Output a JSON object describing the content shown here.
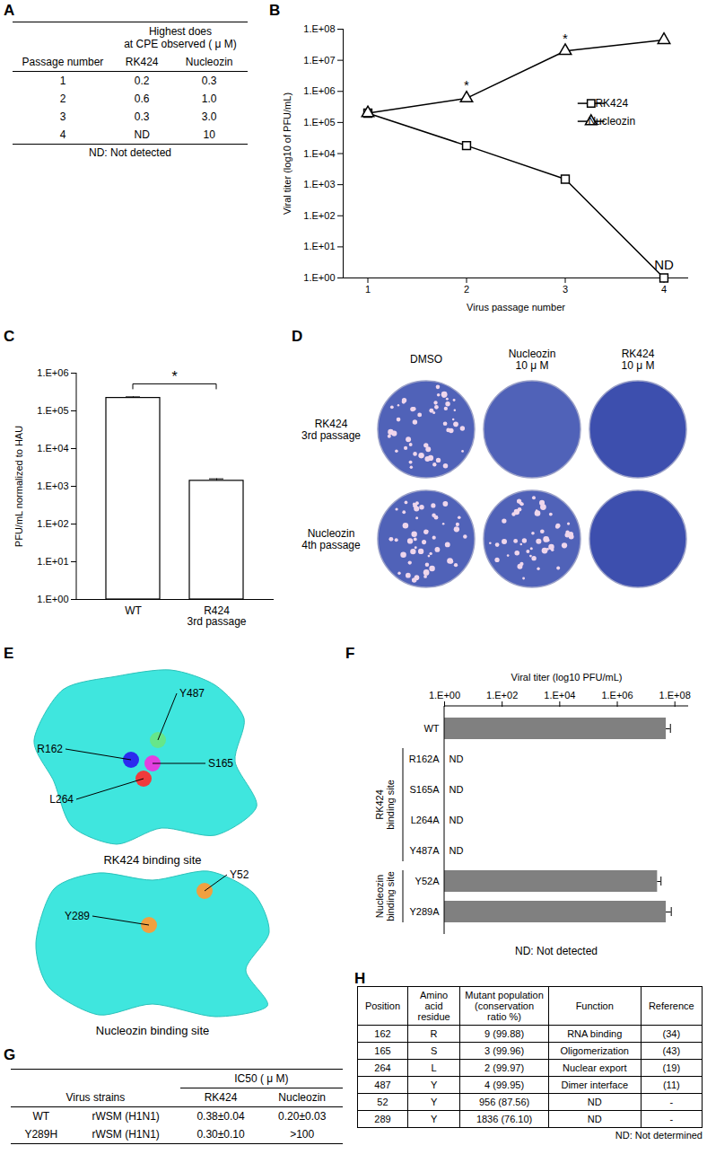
{
  "panel_labels": [
    "A",
    "B",
    "C",
    "D",
    "E",
    "F",
    "G",
    "H"
  ],
  "table_a": {
    "header": "Highest does\nat CPE observed ( μ M)",
    "columns": [
      "Passage number",
      "RK424",
      "Nucleozin"
    ],
    "rows": [
      [
        "1",
        "0.2",
        "0.3"
      ],
      [
        "2",
        "0.6",
        "1.0"
      ],
      [
        "3",
        "0.3",
        "3.0"
      ],
      [
        "4",
        "ND",
        "10"
      ]
    ],
    "footnote": "ND: Not detected"
  },
  "chart_data": [
    {
      "type": "line",
      "x": [
        1,
        2,
        3,
        4
      ],
      "xlim": [
        0.75,
        4.25
      ],
      "xticks": [
        1,
        2,
        3,
        4
      ],
      "x_label": "Virus passage number",
      "y_label": "Viral titer (log10 of PFU/mL)",
      "log": "y",
      "ylim": [
        1,
        100000000
      ],
      "yticks": [
        {
          "value": 1,
          "label": "1.E+00"
        },
        {
          "value": 10,
          "label": "1.E+01"
        },
        {
          "value": 100,
          "label": "1.E+02"
        },
        {
          "value": 1000,
          "label": "1.E+03"
        },
        {
          "value": 10000,
          "label": "1.E+04"
        },
        {
          "value": 100000,
          "label": "1.E+05"
        },
        {
          "value": 1000000,
          "label": "1.E+06"
        },
        {
          "value": 10000000,
          "label": "1.E+07"
        },
        {
          "value": 100000000,
          "label": "1.E+08"
        }
      ],
      "series": [
        {
          "name": "RK424",
          "color": "#000000",
          "marker": "square",
          "values": [
            200000,
            18000,
            1500,
            1
          ]
        },
        {
          "name": "Nucleozin",
          "color": "#000000",
          "marker": "triangle",
          "values": [
            200000,
            600000,
            20000000,
            45000000
          ]
        }
      ],
      "annotations": [
        {
          "x": 2,
          "y": 600000,
          "text": "*"
        },
        {
          "x": 3,
          "y": 20000000,
          "text": "*"
        },
        {
          "x": 4,
          "y": 1,
          "text": "ND"
        }
      ],
      "legend": "right"
    },
    {
      "type": "bar",
      "categories": [
        "WT",
        "R424\n3rd passage"
      ],
      "values": [
        220000,
        1400
      ],
      "errors": [
        15000,
        180
      ],
      "y_label": "PFU/mL normalized to HAU",
      "log": "y",
      "ylim": [
        1,
        1000000
      ],
      "yticks": [
        {
          "value": 1,
          "label": "1.E+00"
        },
        {
          "value": 10,
          "label": "1.E+01"
        },
        {
          "value": 100,
          "label": "1.E+02"
        },
        {
          "value": 1000,
          "label": "1.E+03"
        },
        {
          "value": 10000,
          "label": "1.E+04"
        },
        {
          "value": 100000,
          "label": "1.E+05"
        },
        {
          "value": 1000000,
          "label": "1.E+06"
        }
      ],
      "color": "#ffffff",
      "annotations": [
        {
          "text": "*",
          "x": [
            "WT",
            "R424\n3rd passage"
          ]
        }
      ]
    },
    {
      "type": "bar",
      "orientation": "horizontal",
      "categories": [
        "WT",
        "R162A",
        "S165A",
        "L264A",
        "Y487A",
        "Y52A",
        "Y289A"
      ],
      "values": [
        50000000,
        null,
        null,
        null,
        null,
        25000000,
        50000000
      ],
      "errors": [
        20000000,
        null,
        null,
        null,
        null,
        8000000,
        25000000
      ],
      "value_labels": [
        null,
        "ND",
        "ND",
        "ND",
        "ND",
        null,
        null
      ],
      "x_label": "Viral titer (log10 PFU/mL)",
      "log": "x",
      "xlim": [
        1,
        300000000
      ],
      "xticks": [
        {
          "value": 1,
          "label": "1.E+00"
        },
        {
          "value": 100,
          "label": "1.E+02"
        },
        {
          "value": 10000,
          "label": "1.E+04"
        },
        {
          "value": 1000000,
          "label": "1.E+06"
        },
        {
          "value": 100000000,
          "label": "1.E+08"
        }
      ],
      "color": "#808080",
      "groups": [
        {
          "label": "RK424\nbinding site",
          "categories": [
            "R162A",
            "S165A",
            "L264A",
            "Y487A"
          ]
        },
        {
          "label": "Nucleozin\nbinding site",
          "categories": [
            "Y52A",
            "Y289A"
          ]
        }
      ],
      "footnote": "ND: Not detected"
    }
  ],
  "plaque_assay": {
    "columns": [
      "DMSO",
      "Nucleozin\n10 μ M",
      "RK424\n10 μ M"
    ],
    "rows": [
      "RK424\n3rd passage",
      "Nucleozin\n4th passage"
    ],
    "plaques": [
      [
        true,
        false,
        false
      ],
      [
        true,
        true,
        false
      ]
    ]
  },
  "structures": {
    "surface_color": "#3fe6de",
    "items": [
      {
        "caption": "RK424 binding site",
        "residues": [
          {
            "name": "Y487",
            "color": "#66e68a"
          },
          {
            "name": "R162",
            "color": "#2b2bee"
          },
          {
            "name": "S165",
            "color": "#e23fe0"
          },
          {
            "name": "L264",
            "color": "#f03b3b"
          }
        ]
      },
      {
        "caption": "Nucleozin binding site",
        "residues": [
          {
            "name": "Y52",
            "color": "#f0a040"
          },
          {
            "name": "Y289",
            "color": "#f0a040"
          }
        ]
      }
    ]
  },
  "table_g": {
    "header": "IC50 ( μ M)",
    "columns": [
      "Virus strains",
      "RK424",
      "Nucleozin"
    ],
    "rows": [
      [
        "WT",
        "rWSM (H1N1)",
        "0.38±0.04",
        "0.20±0.03"
      ],
      [
        "Y289H",
        "rWSM (H1N1)",
        "0.30±0.10",
        ">100"
      ]
    ]
  },
  "table_h": {
    "columns": [
      "Position",
      "Amino acid residue",
      "Mutant population (conservation ratio %)",
      "Function",
      "Reference"
    ],
    "rows": [
      [
        "162",
        "R",
        "9 (99.88)",
        "RNA binding",
        "(34)"
      ],
      [
        "165",
        "S",
        "3 (99.96)",
        "Oligomerization",
        "(43)"
      ],
      [
        "264",
        "L",
        "2 (99.97)",
        "Nuclear export",
        "(19)"
      ],
      [
        "487",
        "Y",
        "4 (99.95)",
        "Dimer interface",
        "(11)"
      ],
      [
        "52",
        "Y",
        "956 (87.56)",
        "ND",
        "-"
      ],
      [
        "289",
        "Y",
        "1836 (76.10)",
        "ND",
        "-"
      ]
    ],
    "footnote": "ND: Not determined"
  }
}
